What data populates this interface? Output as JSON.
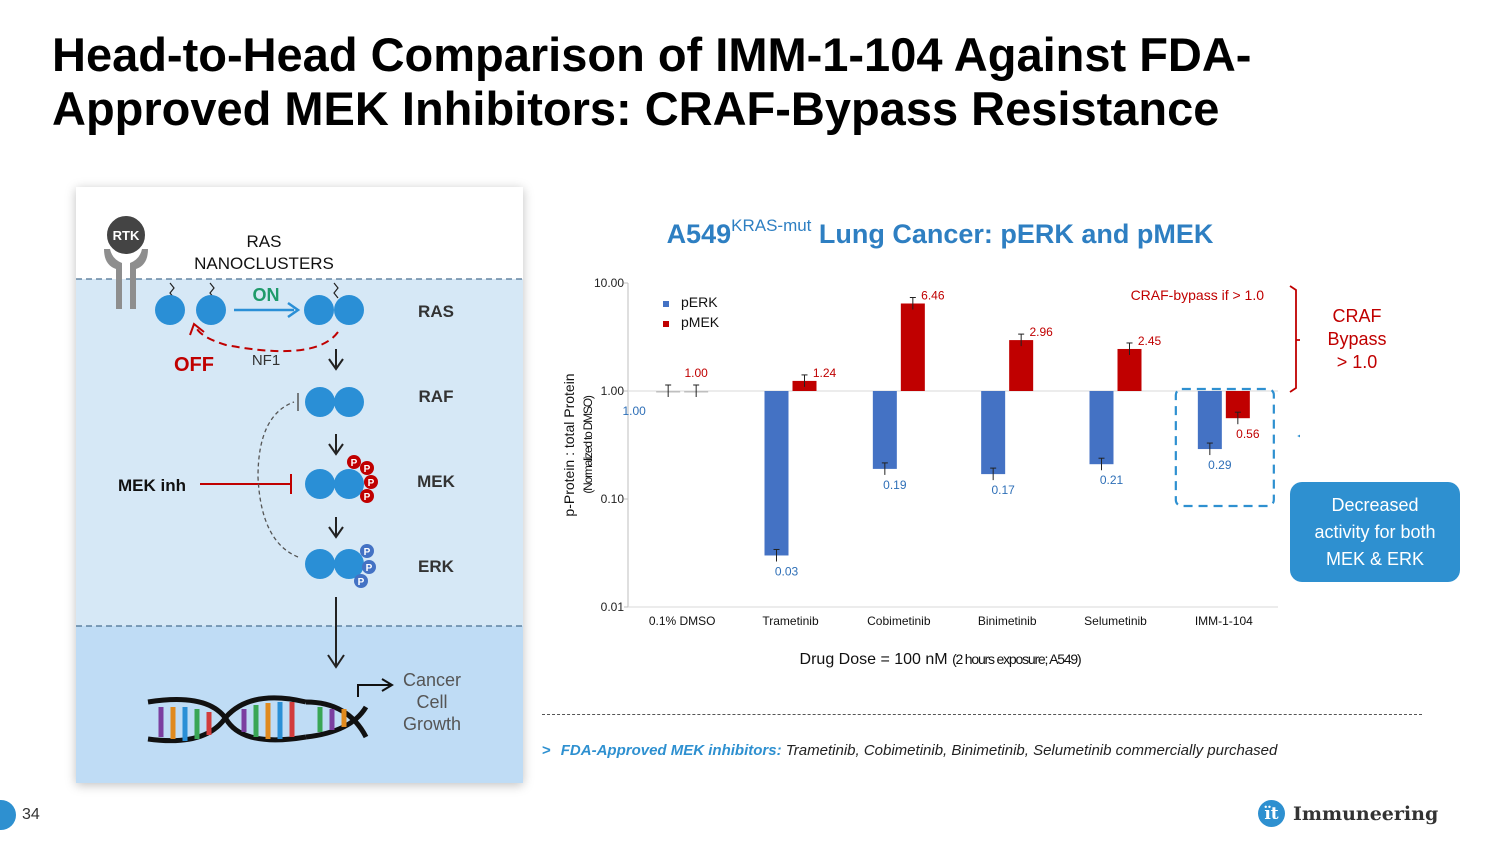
{
  "slide": {
    "title_line1": "Head-to-Head Comparison of IMM-1-104 Against FDA-",
    "title_line2": "Approved MEK Inhibitors: CRAF-Bypass Resistance",
    "page_number": "34"
  },
  "pathway": {
    "rtk": "RTK",
    "ras_nanoclusters_1": "RAS",
    "ras_nanoclusters_2": "NANOCLUSTERS",
    "on": "ON",
    "off": "OFF",
    "nf1": "NF1",
    "ras": "RAS",
    "raf": "RAF",
    "mek": "MEK",
    "erk": "ERK",
    "mek_inh": "MEK inh",
    "phospho": "P",
    "cancer1": "Cancer",
    "cancer2": "Cell",
    "cancer3": "Growth",
    "colors": {
      "bg_top": "#ffffff",
      "bg_mid": "#d6e8f6",
      "bg_bottom": "#bfdcf5",
      "node": "#2a8fd6",
      "red": "#c00000",
      "green": "#1f9a6a"
    }
  },
  "chart_title": {
    "main": "A549",
    "sup": "KRAS-mut",
    "rest": " Lung Cancer: pERK and pMEK"
  },
  "chart_data": {
    "type": "bar",
    "scale": "log",
    "baseline": 1.0,
    "ylim": [
      0.01,
      10.0
    ],
    "yticks": [
      "10.00",
      "1.00",
      "0.10",
      "0.01"
    ],
    "ylabel": "p-Protein : total Protein",
    "ylabel_sub": "(Normalized to DMSO)",
    "xlabel": "Drug Dose = 100 nM",
    "xlabel_sub": "(2 hours exposure; A549)",
    "categories": [
      "0.1% DMSO",
      "Trametinib",
      "Cobimetinib",
      "Binimetinib",
      "Selumetinib",
      "IMM-1-104"
    ],
    "series": [
      {
        "name": "pERK",
        "color": "#4472c4",
        "values": [
          1.0,
          0.03,
          0.19,
          0.17,
          0.21,
          0.29
        ],
        "labels": [
          "1.00",
          "0.03",
          "0.19",
          "0.17",
          "0.21",
          "0.29"
        ]
      },
      {
        "name": "pMEK",
        "color": "#c00000",
        "values": [
          1.0,
          1.24,
          6.46,
          2.96,
          2.45,
          0.56
        ],
        "labels": [
          "1.00",
          "1.24",
          "6.46",
          "2.96",
          "2.45",
          "0.56"
        ]
      }
    ],
    "legend": "top-left",
    "annotation": "CRAF-bypass if > 1.0"
  },
  "bypass_label": {
    "line1": "CRAF",
    "line2": "Bypass",
    "line3": "> 1.0"
  },
  "callout": {
    "line1": "Decreased",
    "line2": "activity for both",
    "line3": "MEK & ERK"
  },
  "footnote": {
    "lead": "FDA-Approved MEK inhibitors:",
    "rest": " Trametinib, Cobimetinib, Binimetinib, Selumetinib commercially purchased"
  },
  "logo": {
    "mark": "ït",
    "text": "Immuneering"
  }
}
